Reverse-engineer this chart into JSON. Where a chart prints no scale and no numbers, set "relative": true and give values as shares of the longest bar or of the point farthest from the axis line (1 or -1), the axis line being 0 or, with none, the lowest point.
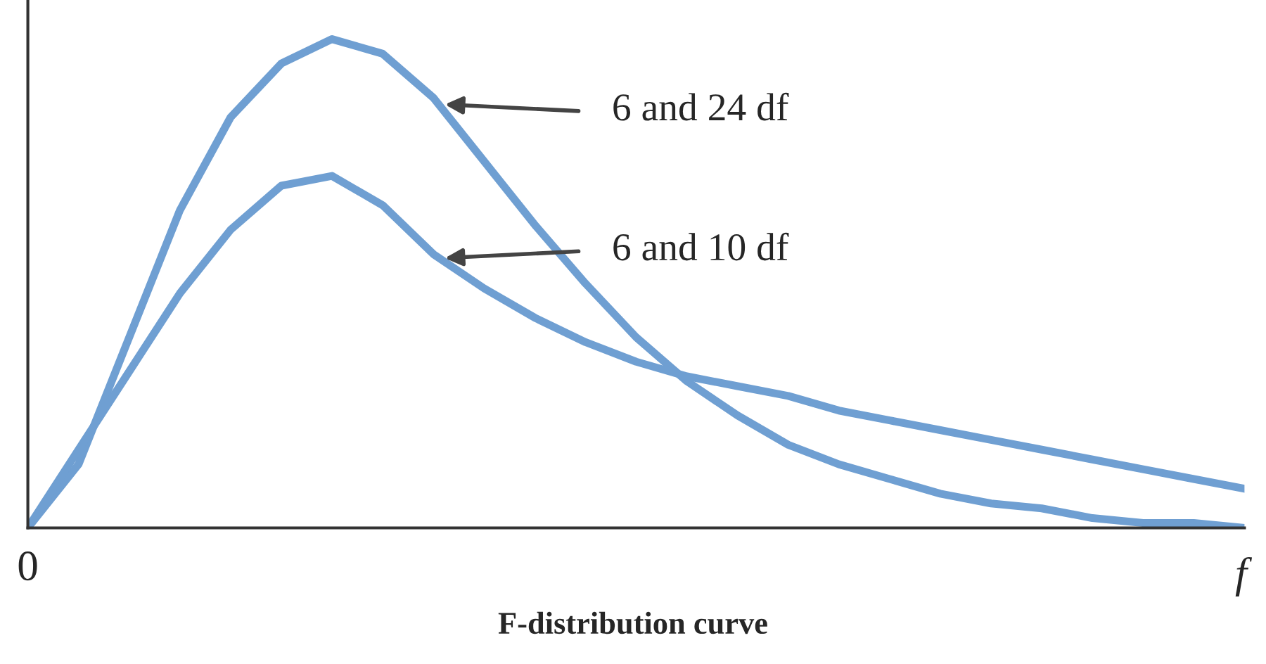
{
  "chart_data": {
    "type": "line",
    "title": "F-distribution curve",
    "xlabel": "f",
    "relative": true,
    "categories": [
      null,
      null,
      null,
      null,
      null,
      null,
      null,
      null,
      null,
      null,
      null,
      null,
      null,
      null,
      null,
      null,
      null,
      null,
      null,
      null,
      null,
      null,
      null,
      null,
      null
    ],
    "series": [
      {
        "color": "#6f9fd2",
        "values": [
          0,
          0.13,
          0.39,
          0.65,
          0.84,
          0.95,
          1.0,
          0.97,
          0.88,
          0.75,
          0.62,
          0.5,
          0.39,
          0.3,
          0.23,
          0.17,
          0.13,
          0.1,
          0.07,
          0.05,
          0.04,
          0.02,
          0.01,
          0.01,
          0
        ]
      },
      {
        "color": "#6f9fd2",
        "values": [
          0,
          0.16,
          0.32,
          0.48,
          0.61,
          0.7,
          0.72,
          0.66,
          0.56,
          0.49,
          0.43,
          0.38,
          0.34,
          0.31,
          0.29,
          0.27,
          0.24,
          0.22,
          0.2,
          0.18,
          0.16,
          0.14,
          0.12,
          0.1,
          0.08
        ]
      }
    ],
    "annotations": [
      "6 and 24 df",
      "6 and 10 df",
      "0"
    ],
    "legend": false,
    "marker": "none",
    "line_style": "solid"
  }
}
